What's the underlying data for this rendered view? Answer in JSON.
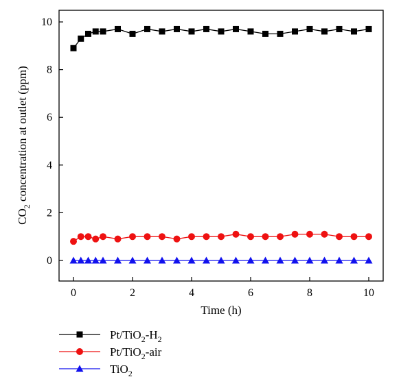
{
  "chart_data": {
    "type": "line",
    "title": "",
    "xlabel": "Time (h)",
    "ylabel": {
      "pre": "CO",
      "sub": "2",
      "post": " concentration at outlet (ppm)"
    },
    "xlim": [
      0,
      10
    ],
    "ylim": [
      0,
      10
    ],
    "xticks": [
      "0",
      "2",
      "4",
      "6",
      "8",
      "10"
    ],
    "yticks": [
      "0",
      "2",
      "4",
      "6",
      "8",
      "10"
    ],
    "grid": false,
    "legend_position": "below",
    "series": [
      {
        "name": "Pt/TiO2-H2",
        "name_parts": [
          {
            "t": "Pt/TiO"
          },
          {
            "t": "2",
            "sub": true
          },
          {
            "t": "-H"
          },
          {
            "t": "2",
            "sub": true
          }
        ],
        "color": "#000000",
        "marker": "square",
        "x": [
          0,
          0.25,
          0.5,
          0.75,
          1,
          1.5,
          2,
          2.5,
          3,
          3.5,
          4,
          4.5,
          5,
          5.5,
          6,
          6.5,
          7,
          7.5,
          8,
          8.5,
          9,
          9.5,
          10
        ],
        "y": [
          8.9,
          9.3,
          9.5,
          9.6,
          9.6,
          9.7,
          9.5,
          9.7,
          9.6,
          9.7,
          9.6,
          9.7,
          9.6,
          9.7,
          9.6,
          9.5,
          9.5,
          9.6,
          9.7,
          9.6,
          9.7,
          9.6,
          9.7
        ]
      },
      {
        "name": "Pt/TiO2-air",
        "name_parts": [
          {
            "t": "Pt/TiO"
          },
          {
            "t": "2",
            "sub": true
          },
          {
            "t": "-air"
          }
        ],
        "color": "#ee1111",
        "marker": "circle",
        "x": [
          0,
          0.25,
          0.5,
          0.75,
          1,
          1.5,
          2,
          2.5,
          3,
          3.5,
          4,
          4.5,
          5,
          5.5,
          6,
          6.5,
          7,
          7.5,
          8,
          8.5,
          9,
          9.5,
          10
        ],
        "y": [
          0.8,
          1.0,
          1.0,
          0.9,
          1.0,
          0.9,
          1.0,
          1.0,
          1.0,
          0.9,
          1.0,
          1.0,
          1.0,
          1.1,
          1.0,
          1.0,
          1.0,
          1.1,
          1.1,
          1.1,
          1.0,
          1.0,
          1.0
        ]
      },
      {
        "name": "TiO2",
        "name_parts": [
          {
            "t": "TiO"
          },
          {
            "t": "2",
            "sub": true
          }
        ],
        "color": "#1111ee",
        "marker": "triangle",
        "x": [
          0,
          0.25,
          0.5,
          0.75,
          1,
          1.5,
          2,
          2.5,
          3,
          3.5,
          4,
          4.5,
          5,
          5.5,
          6,
          6.5,
          7,
          7.5,
          8,
          8.5,
          9,
          9.5,
          10
        ],
        "y": [
          0,
          0,
          0,
          0,
          0,
          0,
          0,
          0,
          0,
          0,
          0,
          0,
          0,
          0,
          0,
          0,
          0,
          0,
          0,
          0,
          0,
          0,
          0
        ]
      }
    ]
  }
}
